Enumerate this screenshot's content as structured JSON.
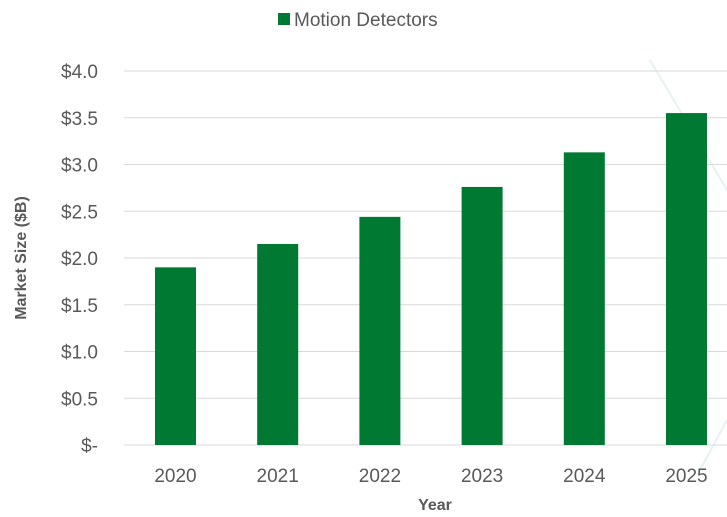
{
  "chart_data": {
    "type": "bar",
    "categories": [
      "2020",
      "2021",
      "2022",
      "2023",
      "2024",
      "2025"
    ],
    "series": [
      {
        "name": "Motion Detectors",
        "values": [
          1.9,
          2.15,
          2.44,
          2.76,
          3.13,
          3.55
        ],
        "color": "#007a33"
      }
    ],
    "xlabel": "Year",
    "ylabel": "Market Size ($B)",
    "ylim": [
      0,
      4.0
    ],
    "yticks": [
      0,
      0.5,
      1.0,
      1.5,
      2.0,
      2.5,
      3.0,
      3.5,
      4.0
    ],
    "ytick_labels": [
      "$-",
      "$0.5",
      "$1.0",
      "$1.5",
      "$2.0",
      "$2.5",
      "$3.0",
      "$3.5",
      "$4.0"
    ],
    "grid": true,
    "legend_position": "top-center"
  }
}
